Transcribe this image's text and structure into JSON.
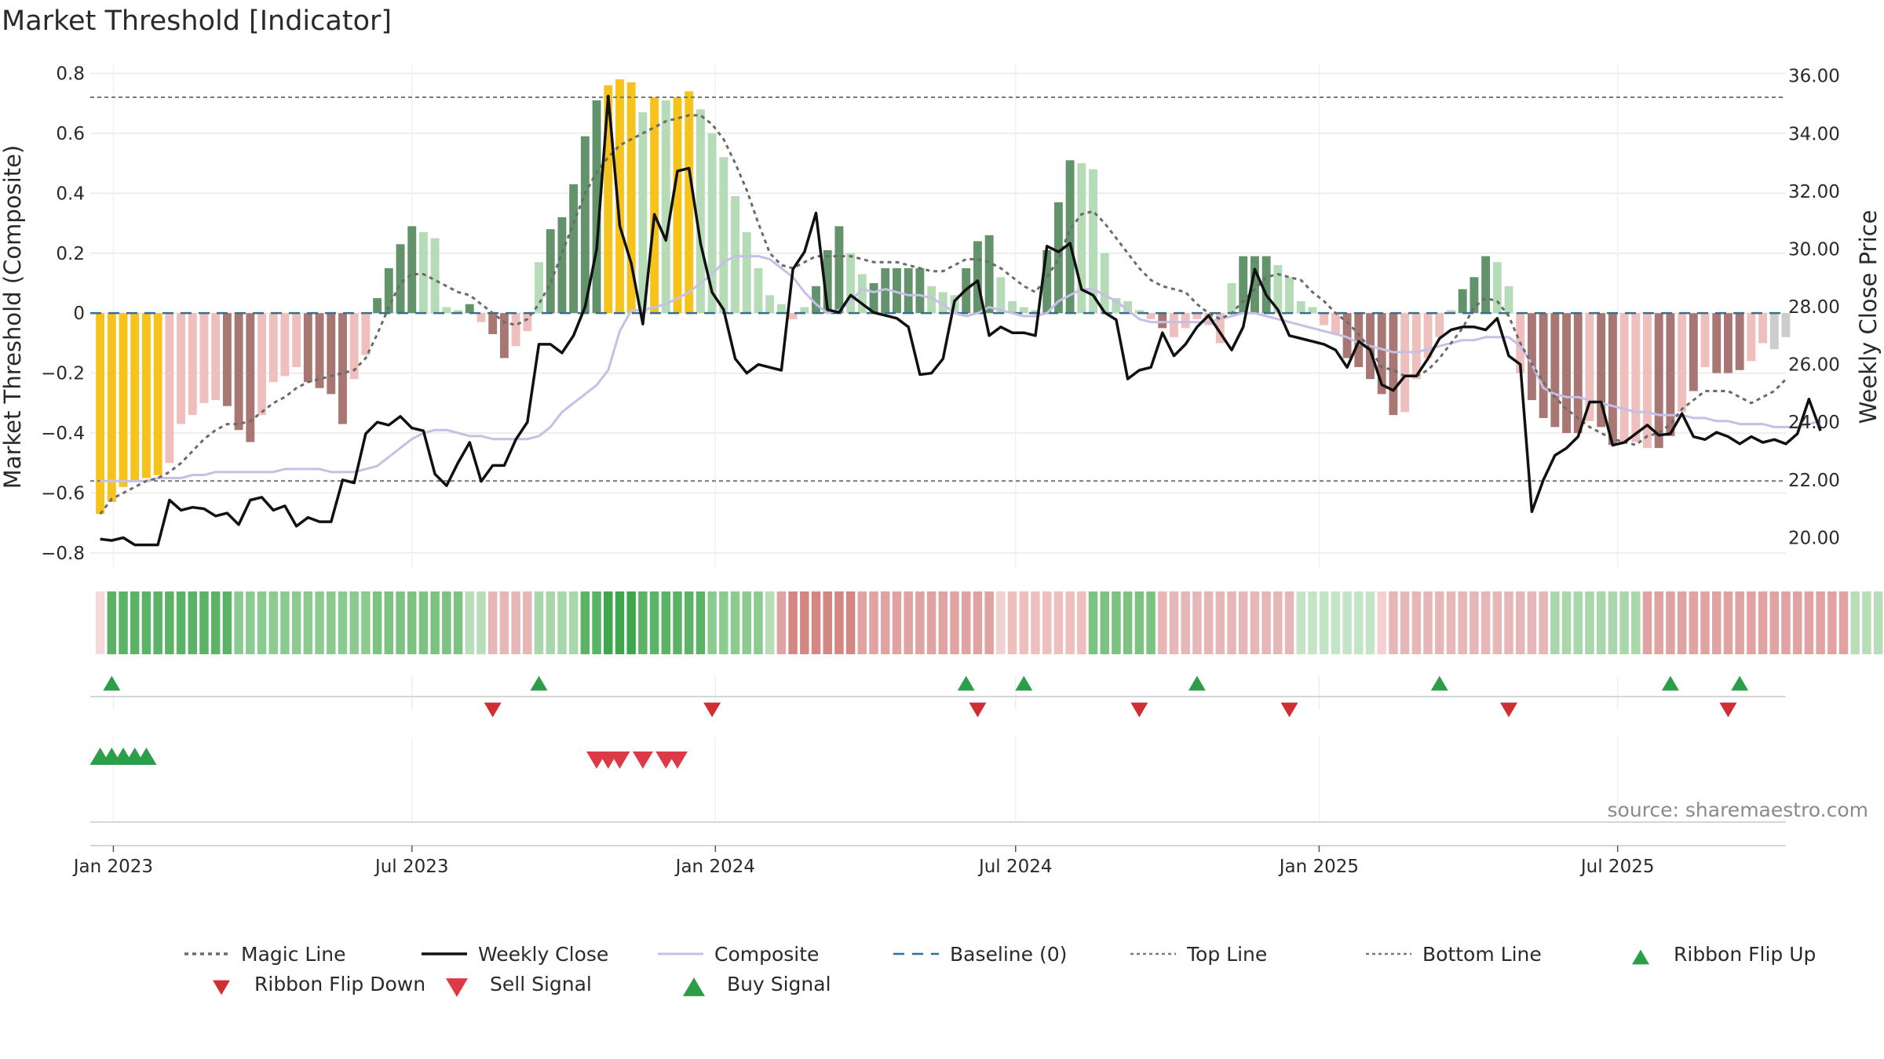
{
  "chart_data": {
    "type": "bar",
    "title": "Market Threshold [Indicator]",
    "ylabel": "Market Threshold (Composite)",
    "y2label": "Weekly Close Price",
    "source": "source: sharemaestro.com",
    "ylim": [
      -0.85,
      0.83
    ],
    "y2lim": [
      18.95,
      36.4
    ],
    "xlim": [
      "2022-12-18",
      "2025-10-11"
    ],
    "y_ticks": [
      0.8,
      0.6,
      0.4,
      0.2,
      0,
      -0.2,
      -0.4,
      -0.6,
      -0.8
    ],
    "y_tick_labels": [
      "0.8",
      "0.6",
      "0.4",
      "0.2",
      "0",
      "−0.2",
      "−0.4",
      "−0.6",
      "−0.8"
    ],
    "y2_ticks": [
      36,
      34,
      32,
      30,
      28,
      26,
      24,
      22,
      20
    ],
    "y2_tick_labels": [
      "36.00",
      "34.00",
      "32.00",
      "30.00",
      "28.00",
      "26.00",
      "24.00",
      "22.00",
      "20.00"
    ],
    "x_ticks": [
      "2023-01-01",
      "2023-07-01",
      "2024-01-01",
      "2024-07-01",
      "2025-01-01",
      "2025-07-01"
    ],
    "x_tick_labels": [
      "Jan 2023",
      "Jul 2023",
      "Jan 2024",
      "Jul 2024",
      "Jan 2025",
      "Jul 2025"
    ],
    "grid": true,
    "legend_position": "bottom",
    "start_date": "2022-12-24",
    "week_step_days": 7,
    "top_line": 0.72,
    "bottom_line": -0.56,
    "baseline": 0,
    "composite": [
      -0.67,
      -0.63,
      -0.58,
      -0.56,
      -0.55,
      -0.54,
      -0.5,
      -0.37,
      -0.34,
      -0.3,
      -0.29,
      -0.31,
      -0.39,
      -0.43,
      -0.34,
      -0.23,
      -0.21,
      -0.18,
      -0.23,
      -0.25,
      -0.27,
      -0.37,
      -0.22,
      -0.14,
      0.05,
      0.15,
      0.23,
      0.29,
      0.27,
      0.25,
      0.02,
      0.01,
      0.03,
      -0.03,
      -0.07,
      -0.15,
      -0.11,
      -0.06,
      0.17,
      0.28,
      0.32,
      0.43,
      0.59,
      0.71,
      0.76,
      0.78,
      0.77,
      0.67,
      0.72,
      0.71,
      0.72,
      0.74,
      0.68,
      0.6,
      0.52,
      0.39,
      0.27,
      0.15,
      0.06,
      0.03,
      -0.02,
      0.02,
      0.09,
      0.21,
      0.29,
      0.2,
      0.13,
      0.1,
      0.15,
      0.15,
      0.15,
      0.15,
      0.09,
      0.07,
      0.06,
      0.15,
      0.24,
      0.26,
      0.12,
      0.04,
      0.02,
      0.01,
      0.21,
      0.37,
      0.51,
      0.5,
      0.48,
      0.2,
      0.05,
      0.04,
      0.01,
      -0.02,
      -0.05,
      -0.08,
      -0.05,
      -0.02,
      -0.04,
      -0.1,
      0.1,
      0.19,
      0.19,
      0.19,
      0.16,
      0.12,
      0.04,
      0.02,
      -0.04,
      -0.07,
      -0.15,
      -0.18,
      -0.22,
      -0.27,
      -0.34,
      -0.33,
      -0.22,
      -0.15,
      -0.08,
      0.01,
      0.08,
      0.12,
      0.19,
      0.17,
      0.09,
      -0.2,
      -0.29,
      -0.35,
      -0.38,
      -0.4,
      -0.4,
      -0.36,
      -0.38,
      -0.44,
      -0.43,
      -0.43,
      -0.45,
      -0.45,
      -0.41,
      -0.33,
      -0.26,
      -0.18,
      -0.2,
      -0.2,
      -0.19,
      -0.16,
      -0.1,
      -0.12,
      -0.08
    ],
    "bar_colors": [
      "#f6c21c",
      "#f6c21c",
      "#f6c21c",
      "#f6c21c",
      "#f6c21c",
      "#f6c21c",
      "#eebfbd",
      "#eebfbd",
      "#eebfbd",
      "#eebfbd",
      "#eebfbd",
      "#a97773",
      "#a97773",
      "#a97773",
      "#eebfbd",
      "#eebfbd",
      "#eebfbd",
      "#eebfbd",
      "#a97773",
      "#a97773",
      "#a97773",
      "#a97773",
      "#eebfbd",
      "#eebfbd",
      "#63936a",
      "#63936a",
      "#63936a",
      "#63936a",
      "#b5dbb7",
      "#b5dbb7",
      "#b5dbb7",
      "#b5dbb7",
      "#63936a",
      "#eebfbd",
      "#a97773",
      "#a97773",
      "#eebfbd",
      "#eebfbd",
      "#b5dbb7",
      "#63936a",
      "#63936a",
      "#63936a",
      "#63936a",
      "#63936a",
      "#f6c21c",
      "#f6c21c",
      "#f6c21c",
      "#b5dbb7",
      "#f6c21c",
      "#b5dbb7",
      "#f6c21c",
      "#f6c21c",
      "#b5dbb7",
      "#b5dbb7",
      "#b5dbb7",
      "#b5dbb7",
      "#b5dbb7",
      "#b5dbb7",
      "#b5dbb7",
      "#b5dbb7",
      "#eebfbd",
      "#b5dbb7",
      "#63936a",
      "#63936a",
      "#63936a",
      "#b5dbb7",
      "#b5dbb7",
      "#63936a",
      "#63936a",
      "#63936a",
      "#63936a",
      "#63936a",
      "#b5dbb7",
      "#b5dbb7",
      "#b5dbb7",
      "#63936a",
      "#63936a",
      "#63936a",
      "#b5dbb7",
      "#b5dbb7",
      "#b5dbb7",
      "#b5dbb7",
      "#63936a",
      "#63936a",
      "#63936a",
      "#b5dbb7",
      "#b5dbb7",
      "#b5dbb7",
      "#b5dbb7",
      "#b5dbb7",
      "#b5dbb7",
      "#eebfbd",
      "#a97773",
      "#eebfbd",
      "#eebfbd",
      "#eebfbd",
      "#eebfbd",
      "#eebfbd",
      "#b5dbb7",
      "#63936a",
      "#63936a",
      "#63936a",
      "#b5dbb7",
      "#b5dbb7",
      "#b5dbb7",
      "#b5dbb7",
      "#eebfbd",
      "#eebfbd",
      "#a97773",
      "#a97773",
      "#a97773",
      "#a97773",
      "#a97773",
      "#eebfbd",
      "#eebfbd",
      "#eebfbd",
      "#eebfbd",
      "#eebfbd",
      "#63936a",
      "#63936a",
      "#63936a",
      "#b5dbb7",
      "#b5dbb7",
      "#eebfbd",
      "#a97773",
      "#a97773",
      "#a97773",
      "#a97773",
      "#a97773",
      "#eebfbd",
      "#a97773",
      "#a97773",
      "#eebfbd",
      "#eebfbd",
      "#eebfbd",
      "#a97773",
      "#a97773",
      "#eebfbd",
      "#a97773",
      "#eebfbd",
      "#a97773",
      "#a97773",
      "#a97773",
      "#eebfbd",
      "#eebfbd"
    ],
    "weekly_close": [
      19.95,
      19.9,
      20.0,
      19.75,
      19.75,
      19.75,
      21.3,
      20.95,
      21.05,
      21.0,
      20.75,
      20.85,
      20.45,
      21.3,
      21.4,
      20.95,
      21.1,
      20.4,
      20.7,
      20.55,
      20.55,
      22.0,
      21.9,
      23.6,
      24.0,
      23.9,
      24.2,
      23.8,
      23.7,
      22.2,
      21.8,
      22.6,
      23.3,
      21.95,
      22.5,
      22.5,
      23.4,
      24.0,
      26.7,
      26.7,
      26.4,
      27.0,
      28.0,
      30.0,
      35.3,
      30.8,
      29.5,
      27.4,
      31.2,
      30.3,
      32.7,
      32.8,
      30.2,
      28.5,
      27.9,
      26.2,
      25.7,
      26.0,
      25.9,
      25.8,
      29.3,
      29.9,
      31.25,
      27.9,
      27.8,
      28.4,
      28.1,
      27.8,
      27.7,
      27.6,
      27.3,
      25.65,
      25.7,
      26.2,
      28.2,
      28.6,
      28.9,
      27.0,
      27.3,
      27.1,
      27.1,
      27.0,
      30.1,
      29.9,
      30.2,
      28.6,
      28.4,
      27.8,
      27.55,
      25.5,
      25.8,
      25.9,
      27.1,
      26.3,
      26.7,
      27.3,
      27.7,
      27.1,
      26.5,
      27.3,
      29.3,
      28.4,
      27.9,
      27.0,
      26.9,
      26.8,
      26.7,
      26.5,
      25.9,
      26.8,
      26.5,
      25.3,
      25.1,
      25.6,
      25.6,
      26.2,
      26.9,
      27.2,
      27.3,
      27.3,
      27.2,
      27.6,
      26.3,
      26.0,
      20.9,
      22.0,
      22.85,
      23.1,
      23.5,
      24.7,
      24.7,
      23.2,
      23.3,
      23.6,
      23.9,
      23.55,
      23.6,
      24.3,
      23.5,
      23.4,
      23.65,
      23.5,
      23.25,
      23.5,
      23.3,
      23.4,
      23.25,
      23.6,
      24.8,
      23.7
    ],
    "magic_line": [
      -0.67,
      -0.62,
      -0.6,
      -0.58,
      -0.56,
      -0.55,
      -0.53,
      -0.5,
      -0.46,
      -0.42,
      -0.39,
      -0.37,
      -0.37,
      -0.36,
      -0.33,
      -0.3,
      -0.28,
      -0.25,
      -0.23,
      -0.22,
      -0.21,
      -0.2,
      -0.19,
      -0.15,
      -0.07,
      0.02,
      0.1,
      0.13,
      0.13,
      0.11,
      0.09,
      0.07,
      0.06,
      0.03,
      0.0,
      -0.03,
      -0.04,
      -0.02,
      0.03,
      0.1,
      0.2,
      0.3,
      0.4,
      0.47,
      0.52,
      0.56,
      0.58,
      0.6,
      0.62,
      0.64,
      0.65,
      0.66,
      0.66,
      0.63,
      0.58,
      0.5,
      0.41,
      0.3,
      0.2,
      0.16,
      0.15,
      0.17,
      0.19,
      0.19,
      0.19,
      0.19,
      0.18,
      0.17,
      0.17,
      0.17,
      0.16,
      0.15,
      0.14,
      0.14,
      0.16,
      0.18,
      0.18,
      0.17,
      0.15,
      0.12,
      0.09,
      0.07,
      0.12,
      0.18,
      0.28,
      0.33,
      0.34,
      0.3,
      0.25,
      0.2,
      0.15,
      0.11,
      0.09,
      0.08,
      0.07,
      0.03,
      0.0,
      -0.02,
      0.0,
      0.04,
      0.08,
      0.12,
      0.13,
      0.12,
      0.11,
      0.07,
      0.04,
      0.0,
      -0.03,
      -0.07,
      -0.12,
      -0.18,
      -0.19,
      -0.21,
      -0.21,
      -0.19,
      -0.15,
      -0.1,
      -0.05,
      0.02,
      0.05,
      0.04,
      -0.01,
      -0.1,
      -0.17,
      -0.23,
      -0.28,
      -0.32,
      -0.35,
      -0.38,
      -0.4,
      -0.42,
      -0.43,
      -0.44,
      -0.41,
      -0.4,
      -0.37,
      -0.32,
      -0.29,
      -0.26,
      -0.26,
      -0.26,
      -0.28,
      -0.3,
      -0.28,
      -0.26,
      -0.22
    ],
    "composite_line": [
      -0.56,
      -0.56,
      -0.56,
      -0.56,
      -0.56,
      -0.55,
      -0.55,
      -0.55,
      -0.54,
      -0.54,
      -0.53,
      -0.53,
      -0.53,
      -0.53,
      -0.53,
      -0.53,
      -0.52,
      -0.52,
      -0.52,
      -0.52,
      -0.53,
      -0.53,
      -0.53,
      -0.52,
      -0.51,
      -0.48,
      -0.45,
      -0.42,
      -0.4,
      -0.39,
      -0.39,
      -0.4,
      -0.41,
      -0.41,
      -0.42,
      -0.42,
      -0.42,
      -0.42,
      -0.41,
      -0.38,
      -0.33,
      -0.3,
      -0.27,
      -0.24,
      -0.19,
      -0.06,
      0.01,
      0.01,
      0.02,
      0.03,
      0.05,
      0.07,
      0.1,
      0.13,
      0.17,
      0.19,
      0.19,
      0.19,
      0.18,
      0.15,
      0.12,
      0.07,
      0.03,
      0.0,
      0.01,
      0.04,
      0.08,
      0.07,
      0.08,
      0.07,
      0.06,
      0.06,
      0.05,
      0.03,
      0.0,
      -0.01,
      0.0,
      0.02,
      0.01,
      0.0,
      -0.01,
      -0.01,
      0.0,
      0.04,
      0.06,
      0.08,
      0.08,
      0.06,
      0.04,
      0.01,
      -0.02,
      -0.03,
      -0.03,
      -0.03,
      -0.03,
      -0.03,
      -0.03,
      -0.02,
      -0.01,
      0.0,
      0.0,
      -0.01,
      -0.02,
      -0.03,
      -0.04,
      -0.05,
      -0.06,
      -0.07,
      -0.08,
      -0.1,
      -0.11,
      -0.12,
      -0.13,
      -0.13,
      -0.13,
      -0.12,
      -0.11,
      -0.1,
      -0.09,
      -0.09,
      -0.08,
      -0.08,
      -0.08,
      -0.11,
      -0.17,
      -0.25,
      -0.27,
      -0.28,
      -0.28,
      -0.29,
      -0.3,
      -0.31,
      -0.32,
      -0.33,
      -0.33,
      -0.34,
      -0.34,
      -0.34,
      -0.35,
      -0.35,
      -0.36,
      -0.36,
      -0.37,
      -0.37,
      -0.37,
      -0.38,
      -0.38,
      -0.38,
      -0.37,
      -0.36
    ],
    "ribbon_colors": [
      "#f6dadb",
      "#5bb366",
      "#5bb366",
      "#5bb366",
      "#5bb366",
      "#5bb366",
      "#5bb366",
      "#5bb366",
      "#5bb366",
      "#5bb366",
      "#5bb366",
      "#5bb366",
      "#8ccb8f",
      "#8ccb8f",
      "#8ccb8f",
      "#8ccb8f",
      "#8ccb8f",
      "#8ccb8f",
      "#8ccb8f",
      "#8ccb8f",
      "#8ccb8f",
      "#8ccb8f",
      "#8ccb8f",
      "#8ccb8f",
      "#7cc280",
      "#7cc280",
      "#7cc280",
      "#7cc280",
      "#7cc280",
      "#7cc280",
      "#7cc280",
      "#7cc280",
      "#b7deb9",
      "#b7deb9",
      "#e6b7b6",
      "#e6b7b6",
      "#e6b7b6",
      "#e6b7b6",
      "#a7d7aa",
      "#a7d7aa",
      "#a7d7aa",
      "#a7d7aa",
      "#5bb366",
      "#5bb366",
      "#3ea64b",
      "#3ea64b",
      "#3ea64b",
      "#5bb366",
      "#5bb366",
      "#5bb366",
      "#5bb366",
      "#5bb366",
      "#5bb366",
      "#8ccb8f",
      "#8ccb8f",
      "#8ccb8f",
      "#8ccb8f",
      "#8ccb8f",
      "#b7deb9",
      "#e0a3a1",
      "#d48683",
      "#d48683",
      "#d48683",
      "#d48683",
      "#d48683",
      "#d48683",
      "#e0a3a1",
      "#e0a3a1",
      "#e0a3a1",
      "#e0a3a1",
      "#e0a3a1",
      "#e0a3a1",
      "#e0a3a1",
      "#e0a3a1",
      "#e0a3a1",
      "#e0a3a1",
      "#e0a3a1",
      "#e0a3a1",
      "#f3d1d0",
      "#eebfbd",
      "#eebfbd",
      "#eebfbd",
      "#eebfbd",
      "#eebfbd",
      "#eebfbd",
      "#eebfbd",
      "#7cc280",
      "#7cc280",
      "#7cc280",
      "#7cc280",
      "#7cc280",
      "#7cc280",
      "#e6b7b6",
      "#e6b7b6",
      "#e6b7b6",
      "#e6b7b6",
      "#e6b7b6",
      "#e6b7b6",
      "#e6b7b6",
      "#e6b7b6",
      "#e6b7b6",
      "#e6b7b6",
      "#e6b7b6",
      "#e6b7b6",
      "#c3e4c5",
      "#c3e4c5",
      "#c3e4c5",
      "#c3e4c5",
      "#c3e4c5",
      "#c3e4c5",
      "#c3e4c5",
      "#f3d1d0",
      "#e6b7b6",
      "#e6b7b6",
      "#e6b7b6",
      "#e6b7b6",
      "#e6b7b6",
      "#e6b7b6",
      "#e6b7b6",
      "#e6b7b6",
      "#e6b7b6",
      "#e6b7b6",
      "#e6b7b6",
      "#e6b7b6",
      "#e6b7b6",
      "#e6b7b6",
      "#a7d7aa",
      "#a7d7aa",
      "#a7d7aa",
      "#a7d7aa",
      "#a7d7aa",
      "#a7d7aa",
      "#a7d7aa",
      "#a7d7aa",
      "#e0a3a1",
      "#e0a3a1",
      "#e0a3a1",
      "#e0a3a1",
      "#e0a3a1",
      "#e0a3a1",
      "#e0a3a1",
      "#e0a3a1",
      "#e0a3a1",
      "#e0a3a1",
      "#e0a3a1",
      "#e0a3a1",
      "#e0a3a1",
      "#e0a3a1",
      "#e0a3a1",
      "#e0a3a1",
      "#e0a3a1",
      "#e0a3a1",
      "#b7deb9",
      "#b7deb9",
      "#b7deb9",
      "#b7deb9",
      "#b7deb9",
      "#b7deb9",
      "#b7deb9",
      "#b7deb9",
      "#f3d1d0",
      "#b7deb9",
      "#b7deb9"
    ],
    "ribbon_flip_up_dates": [
      "2022-12-31",
      "2023-09-16",
      "2024-06-01",
      "2024-07-06",
      "2024-10-19",
      "2025-03-15",
      "2025-08-02",
      "2025-09-13"
    ],
    "ribbon_flip_down_dates": [
      "2023-08-19",
      "2023-12-30",
      "2024-06-08",
      "2024-09-14",
      "2024-12-14",
      "2025-04-26",
      "2025-09-06"
    ],
    "buy_signal_dates": [
      "2022-12-24",
      "2022-12-31",
      "2023-01-07",
      "2023-01-14",
      "2023-01-21"
    ],
    "sell_signal_dates": [
      "2023-10-21",
      "2023-10-28",
      "2023-11-04",
      "2023-11-18",
      "2023-12-02",
      "2023-12-09"
    ],
    "legend": [
      {
        "label": "Magic Line",
        "marker": "dotted-line"
      },
      {
        "label": "Weekly Close",
        "marker": "solid-line"
      },
      {
        "label": "Composite",
        "marker": "solid-line"
      },
      {
        "label": "Baseline (0)",
        "marker": "dashed-line"
      },
      {
        "label": "Top Line",
        "marker": "dotted-line"
      },
      {
        "label": "Bottom Line",
        "marker": "dotted-line"
      },
      {
        "label": "Ribbon Flip Up",
        "marker": "triangle-up"
      },
      {
        "label": "Ribbon Flip Down",
        "marker": "triangle-down"
      },
      {
        "label": "Sell Signal",
        "marker": "triangle-down"
      },
      {
        "label": "Buy Signal",
        "marker": "triangle-up"
      }
    ]
  },
  "colors": {
    "magic_line": "#6b6b6b",
    "weekly_close": "#111111",
    "composite_line": "#c6bfe6",
    "baseline": "#2e7197",
    "threshold_lines": "#7a7a7a",
    "ribbon_flip_up": "#2a9e48",
    "ribbon_flip_down": "#cf2f32",
    "buy_signal": "#2a9e48",
    "sell_signal": "#dc3a46",
    "grid": "#e9e9e9"
  }
}
